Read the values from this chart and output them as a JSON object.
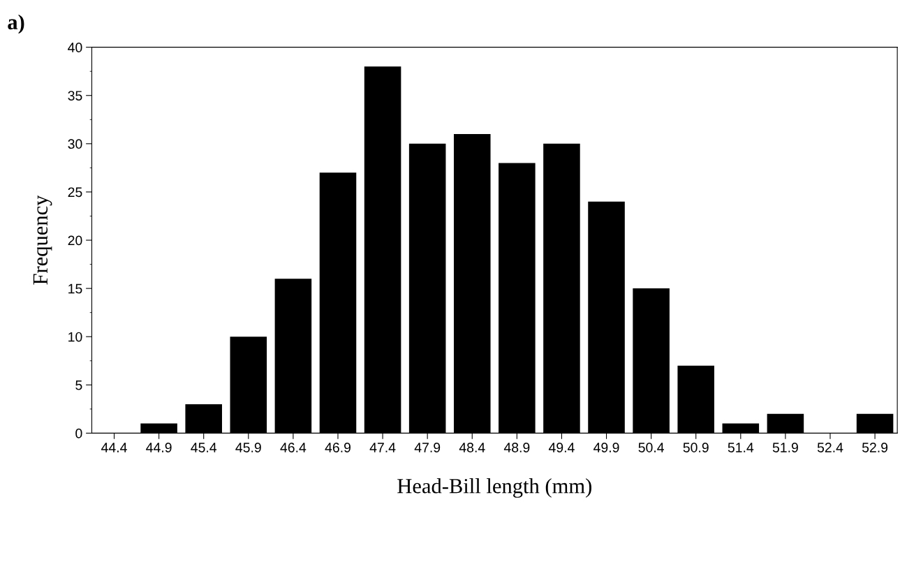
{
  "chart_data": {
    "type": "bar",
    "xlabel": "Head-Bill length (mm)",
    "ylabel": "Frequency",
    "annotations": [
      "a)"
    ],
    "categories": [
      "44.4",
      "44.9",
      "45.4",
      "45.9",
      "46.4",
      "46.9",
      "47.4",
      "47.9",
      "48.4",
      "48.9",
      "49.4",
      "49.9",
      "50.4",
      "50.9",
      "51.4",
      "51.9",
      "52.4",
      "52.9"
    ],
    "values": [
      0,
      1,
      3,
      10,
      16,
      27,
      38,
      30,
      31,
      28,
      30,
      24,
      15,
      7,
      1,
      2,
      0,
      2
    ],
    "color": "#000000",
    "ylim": [
      0,
      40
    ],
    "yticks": [
      0,
      5,
      10,
      15,
      20,
      25,
      30,
      35,
      40
    ],
    "grid": false,
    "legend": false
  }
}
